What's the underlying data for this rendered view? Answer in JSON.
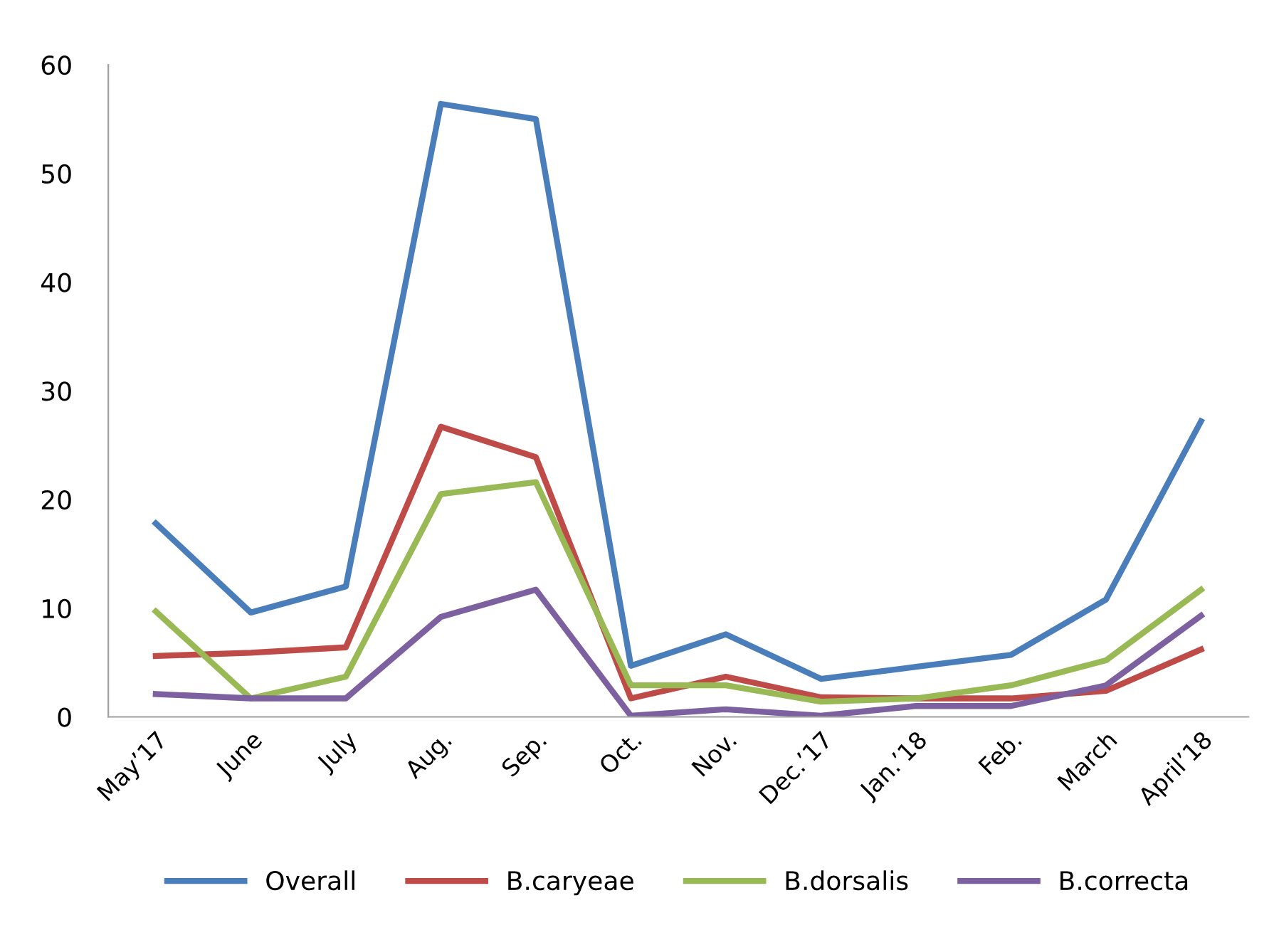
{
  "chart_data": {
    "type": "line",
    "categories": [
      "May’17",
      "June",
      "July",
      "Aug.",
      "Sep.",
      "Oct.",
      "Nov.",
      "Dec.’17",
      "Jan.’18",
      "Feb.",
      "March",
      "April’18"
    ],
    "series": [
      {
        "name": "Overall",
        "color": "#4a7ebb",
        "values": [
          17.8,
          9.6,
          12.0,
          56.4,
          55.0,
          4.7,
          7.6,
          3.5,
          4.6,
          5.7,
          10.8,
          27.2
        ]
      },
      {
        "name": "B.caryeae",
        "color": "#be4b48",
        "values": [
          5.6,
          5.9,
          6.4,
          26.7,
          23.9,
          1.7,
          3.7,
          1.8,
          1.7,
          1.7,
          2.4,
          6.2
        ]
      },
      {
        "name": "B.dorsalis",
        "color": "#98b954",
        "values": [
          9.7,
          1.7,
          3.7,
          20.5,
          21.6,
          2.9,
          2.9,
          1.4,
          1.7,
          2.9,
          5.2,
          11.7
        ]
      },
      {
        "name": "B.correcta",
        "color": "#7d60a0",
        "values": [
          2.1,
          1.7,
          1.7,
          9.2,
          11.7,
          0.1,
          0.7,
          0.1,
          1.0,
          1.0,
          2.9,
          9.3
        ]
      }
    ],
    "ylim": [
      0,
      60
    ],
    "yticks": [
      0,
      10,
      20,
      30,
      40,
      50,
      60
    ],
    "grid": false,
    "legend": "bottom",
    "marker": "none",
    "line_style": "solid"
  }
}
